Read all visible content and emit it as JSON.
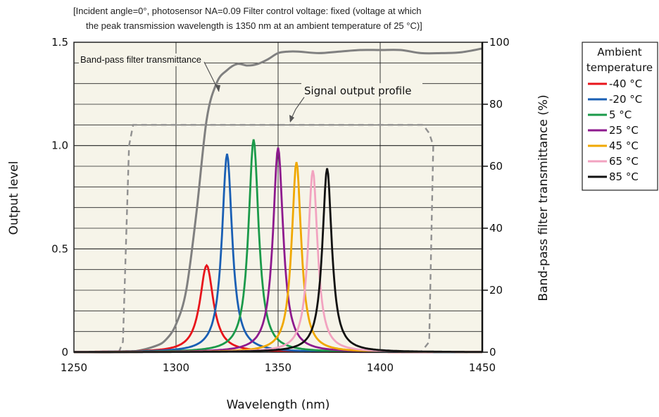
{
  "chart_data": {
    "type": "line",
    "condition_text": [
      "[Incident angle=0°, photosensor NA=0.09 Filter control voltage: fixed (voltage at which",
      "the peak transmission wavelength is 1350 nm at an ambient temperature of 25 °C)]"
    ],
    "xlabel": "Wavelength (nm)",
    "ylabel": "Output level",
    "y2label": "Band-pass filter transmittance (%)",
    "xlim": [
      1250,
      1450
    ],
    "ylim": [
      0,
      1.5
    ],
    "y2lim": [
      0,
      100
    ],
    "x_ticks": [
      "1250",
      "1300",
      "1350",
      "1400",
      "1450"
    ],
    "y_ticks": [
      "0",
      "0.5",
      "1.0",
      "1.5"
    ],
    "y2_ticks": [
      "0",
      "20",
      "40",
      "60",
      "80",
      "100"
    ],
    "grid": true,
    "plot_background": "#f6f4e9",
    "annotations": {
      "filter": "Band-pass filter transmittance",
      "profile": "Signal output profile"
    },
    "legend": {
      "title_lines": [
        "Ambient",
        "temperature"
      ],
      "placement": "right"
    },
    "series": [
      {
        "name": "-40 °C",
        "color": "#e8141b",
        "peak_x": 1315,
        "peak_y": 0.42,
        "width": 4.0
      },
      {
        "name": "-20 °C",
        "color": "#1a5fb4",
        "peak_x": 1325,
        "peak_y": 0.96,
        "width": 3.0
      },
      {
        "name": "5 °C",
        "color": "#1b9a4a",
        "peak_x": 1338,
        "peak_y": 1.03,
        "width": 3.0
      },
      {
        "name": "25 °C",
        "color": "#8e1a8e",
        "peak_x": 1350,
        "peak_y": 0.99,
        "width": 3.0
      },
      {
        "name": "45 °C",
        "color": "#f0a800",
        "peak_x": 1359,
        "peak_y": 0.92,
        "width": 2.8
      },
      {
        "name": "65 °C",
        "color": "#f2a3c0",
        "peak_x": 1367,
        "peak_y": 0.88,
        "width": 2.8
      },
      {
        "name": "85 °C",
        "color": "#111111",
        "peak_x": 1374,
        "peak_y": 0.89,
        "width": 2.8
      }
    ],
    "transmittance": {
      "color": "#808080",
      "x": [
        1250,
        1270,
        1280,
        1290,
        1295,
        1300,
        1305,
        1310,
        1315,
        1320,
        1325,
        1330,
        1335,
        1340,
        1345,
        1350,
        1355,
        1360,
        1370,
        1380,
        1390,
        1400,
        1410,
        1420,
        1430,
        1440,
        1450
      ],
      "y": [
        0,
        0,
        0.3,
        2,
        4,
        9,
        20,
        45,
        75,
        87,
        91,
        93,
        92.5,
        93,
        94.5,
        96.5,
        97,
        97,
        96.5,
        97,
        97.5,
        97.5,
        97.5,
        96.5,
        96.5,
        96.8,
        98
      ]
    },
    "signal_profile": {
      "color": "#909090",
      "x": [
        1272,
        1274,
        1277,
        1279,
        1419,
        1421,
        1424,
        1426,
        1424,
        1420
      ],
      "y": [
        0,
        0.05,
        1.0,
        1.1,
        1.1,
        1.1,
        1.06,
        1.0,
        0.05,
        0
      ]
    }
  }
}
